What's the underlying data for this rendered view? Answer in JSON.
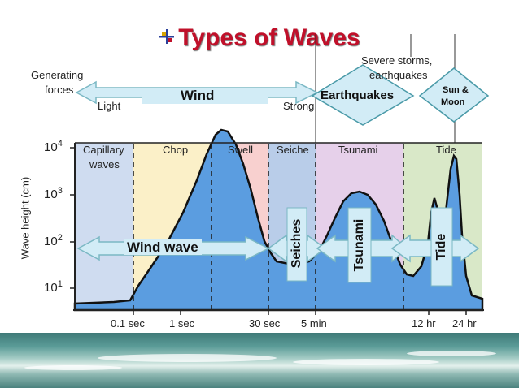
{
  "title": "Types of Waves",
  "forces": {
    "generating_line1": "Generating",
    "generating_line2": "forces",
    "wind": "Wind",
    "light": "Light",
    "strong": "Strong",
    "severe_line1": "Severe storms,",
    "severe_line2": "earthquakes",
    "earthquakes": "Earthquakes",
    "sun_moon_line1": "Sun &",
    "sun_moon_line2": "Moon"
  },
  "y_axis": {
    "label": "Wave height (cm)",
    "ticks": [
      "10",
      "10",
      "10",
      "10"
    ],
    "exponents": [
      "4",
      "3",
      "2",
      "1"
    ]
  },
  "x_axis": {
    "ticks": [
      "0.1 sec",
      "1 sec",
      "30 sec",
      "5 min",
      "12 hr",
      "24 hr"
    ]
  },
  "bands": [
    {
      "name": "Capillary",
      "name2": "waves",
      "color": "#cfdcf0"
    },
    {
      "name": "Chop",
      "color": "#fbf0c8"
    },
    {
      "name": "Swell",
      "color": "#f8d0cf"
    },
    {
      "name": "Seiche",
      "color": "#b9cde9"
    },
    {
      "name": "Tsunami",
      "color": "#e6d0ea"
    },
    {
      "name": "Tide",
      "color": "#d9e8c8"
    }
  ],
  "wave_labels": {
    "wind_wave": "Wind wave",
    "seiches": "Seiches",
    "tsunami": "Tsunami",
    "tide": "Tide"
  },
  "colors": {
    "title": "#c0102a",
    "curve_fill": "#5b9de0",
    "arrow_fill": "#d2ecf6",
    "arrow_stroke": "#7bb8c4"
  }
}
